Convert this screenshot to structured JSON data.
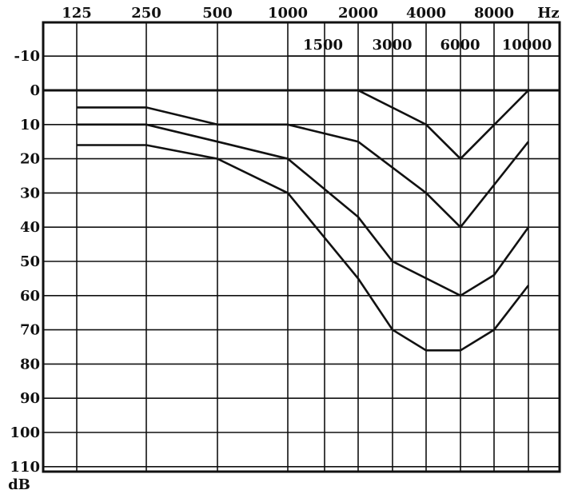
{
  "chart_data": {
    "type": "line",
    "title": "",
    "xlabel": "Hz",
    "ylabel": "dB",
    "x_scale": "log",
    "y_inverted": true,
    "ylim": [
      -20,
      110
    ],
    "y_ticks": [
      "-10",
      "0",
      "10",
      "20",
      "30",
      "40",
      "50",
      "60",
      "70",
      "80",
      "90",
      "100",
      "110"
    ],
    "x_ticks_top": [
      "125",
      "250",
      "500",
      "1000",
      "2000",
      "4000",
      "8000"
    ],
    "x_ticks_bottom": [
      "1500",
      "3000",
      "6000",
      "10000"
    ],
    "x_frequencies": [
      125,
      250,
      500,
      1000,
      1500,
      2000,
      3000,
      4000,
      6000,
      8000,
      10000
    ],
    "grid": true,
    "series": [
      {
        "points": [
          [
            2000,
            0
          ],
          [
            4000,
            10
          ],
          [
            6000,
            20
          ],
          [
            10000,
            0
          ]
        ]
      },
      {
        "points": [
          [
            125,
            5
          ],
          [
            250,
            5
          ],
          [
            500,
            10
          ],
          [
            1000,
            10
          ],
          [
            2000,
            15
          ],
          [
            4000,
            30
          ],
          [
            6000,
            40
          ],
          [
            10000,
            15
          ]
        ]
      },
      {
        "points": [
          [
            125,
            10
          ],
          [
            250,
            10
          ],
          [
            500,
            15
          ],
          [
            1000,
            20
          ],
          [
            2000,
            37
          ],
          [
            3000,
            50
          ],
          [
            6000,
            60
          ],
          [
            8000,
            54
          ],
          [
            10000,
            40
          ]
        ]
      },
      {
        "points": [
          [
            125,
            16
          ],
          [
            250,
            16
          ],
          [
            500,
            20
          ],
          [
            1000,
            30
          ],
          [
            2000,
            55
          ],
          [
            3000,
            70
          ],
          [
            4000,
            76
          ],
          [
            6000,
            76
          ],
          [
            8000,
            70
          ],
          [
            10000,
            57
          ]
        ]
      }
    ]
  }
}
